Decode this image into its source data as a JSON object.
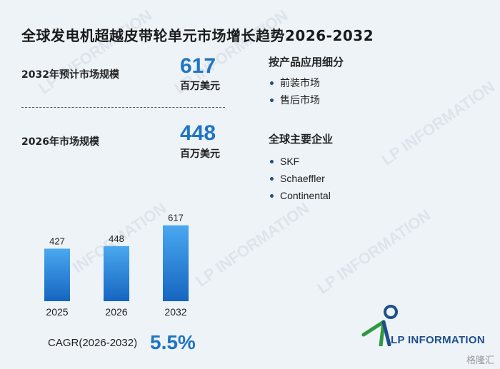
{
  "title": "全球发电机超越皮带轮单元市场增长趋势2026-2032",
  "metrics": [
    {
      "label": "2032年预计市场规模",
      "value": "617",
      "unit": "百万美元"
    },
    {
      "label": "2026年市场规模",
      "value": "448",
      "unit": "百万美元"
    }
  ],
  "segments": {
    "title": "按产品应用细分",
    "items": [
      "前装市场",
      "售后市场"
    ]
  },
  "companies": {
    "title": "全球主要企业",
    "items": [
      "SKF",
      "Schaeffler",
      "Continental"
    ]
  },
  "chart_data": {
    "type": "bar",
    "categories": [
      "2025",
      "2026",
      "2032"
    ],
    "values": [
      427,
      448,
      617
    ],
    "ylim": [
      0,
      650
    ],
    "grid": false,
    "bar_color": "#1f7fd6"
  },
  "cagr": {
    "label": "CAGR(2026-2032)",
    "value": "5.5%"
  },
  "logo": {
    "text": "LP INFORMATION"
  },
  "watermark_text": "LP INFORMATION",
  "source_mark": "格隆汇",
  "colors": {
    "accent": "#1f75c4",
    "brand": "#1f4f8a",
    "logo_green": "#2e9a3e"
  }
}
